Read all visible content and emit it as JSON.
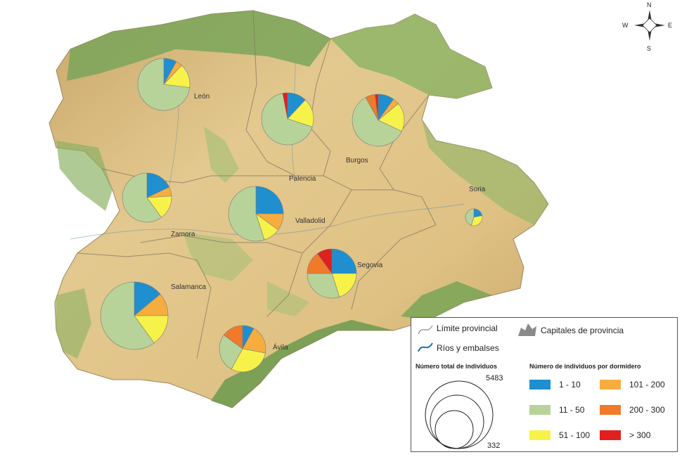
{
  "colors": {
    "c1": "#1f8fcf",
    "c2": "#b7d39a",
    "c3": "#f7f24a",
    "c4": "#f7ad3e",
    "c5": "#f07a2a",
    "c6": "#e01f1f"
  },
  "map": {
    "compass": {
      "n": "N",
      "s": "S",
      "e": "E",
      "w": "W"
    },
    "cities": [
      "León",
      "Palencia",
      "Burgos",
      "Soria",
      "Zamora",
      "Valladolid",
      "Segovia",
      "Salamanca",
      "Ávila"
    ],
    "pies": [
      {
        "name": "León",
        "values": [
          8,
          4,
          15,
          73,
          0,
          0
        ]
      },
      {
        "name": "Palencia",
        "values": [
          12,
          0,
          18,
          67,
          0,
          3
        ]
      },
      {
        "name": "Burgos",
        "values": [
          10,
          4,
          18,
          60,
          6,
          2
        ]
      },
      {
        "name": "Zamora",
        "values": [
          18,
          6,
          16,
          60,
          0,
          0
        ]
      },
      {
        "name": "Valladolid",
        "values": [
          25,
          10,
          10,
          55,
          0,
          0
        ]
      },
      {
        "name": "Soria",
        "values": [
          22,
          0,
          33,
          45,
          0,
          0
        ]
      },
      {
        "name": "Segovia",
        "values": [
          25,
          0,
          20,
          30,
          15,
          10
        ]
      },
      {
        "name": "Salamanca",
        "values": [
          14,
          11,
          15,
          60,
          0,
          0
        ]
      },
      {
        "name": "Ávila",
        "values": [
          8,
          20,
          30,
          27,
          15,
          0
        ]
      }
    ]
  },
  "legend": {
    "provincial_limit": "Límite provincial",
    "rivers": "Ríos y embalses",
    "capitals": "Capitales de provincia",
    "total_title": "Número total de individuos",
    "max_value": "5483",
    "min_value": "332",
    "classes_title": "Número de individuos por dormidero",
    "classes": [
      {
        "label": "1 - 10",
        "color_key": "c1"
      },
      {
        "label": "101 - 200",
        "color_key": "c4"
      },
      {
        "label": "11 - 50",
        "color_key": "c2"
      },
      {
        "label": "200 - 300",
        "color_key": "c5"
      },
      {
        "label": "51 - 100",
        "color_key": "c3"
      },
      {
        "label": "> 300",
        "color_key": "c6"
      }
    ]
  }
}
